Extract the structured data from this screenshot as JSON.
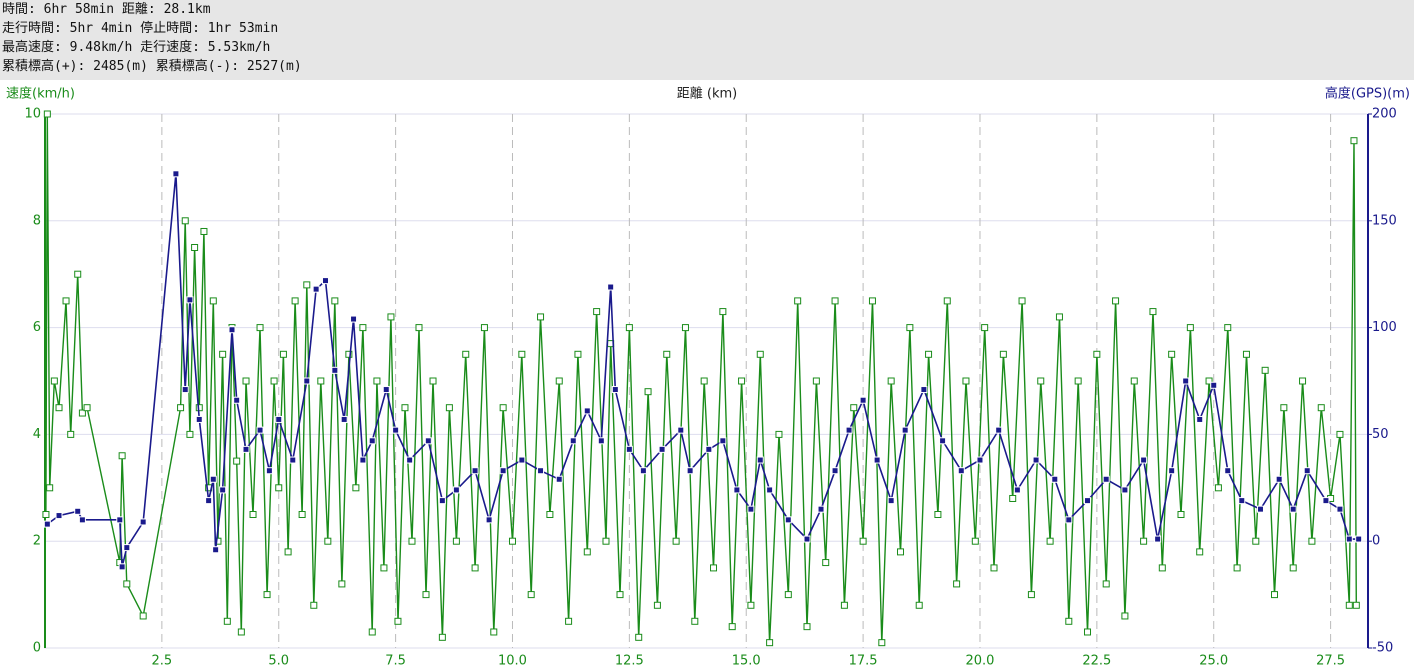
{
  "header": {
    "lines": [
      "時間: 6hr 58min 距離: 28.1km",
      "走行時間: 5hr 4min 停止時間: 1hr 53min",
      "最高速度: 9.48km/h 走行速度: 5.53km/h",
      "累積標高(+): 2485(m) 累積標高(-): 2527(m)"
    ]
  },
  "chart_data": {
    "type": "line",
    "ylabel": "速度(km/h)",
    "xlabel": "距離 (km)",
    "y2label": "高度(GPS)(m)",
    "xlim": [
      0,
      28.3
    ],
    "xticks": [
      2.5,
      {
        "value": 5,
        "label": "5.0"
      },
      7.5,
      {
        "value": 10,
        "label": "10.0"
      },
      12.5,
      {
        "value": 15,
        "label": "15.0"
      },
      17.5,
      {
        "value": 20,
        "label": "20.0"
      },
      22.5,
      {
        "value": 25,
        "label": "25.0"
      },
      27.5
    ],
    "ylim": [
      0,
      10
    ],
    "yticks": [
      0,
      2,
      4,
      6,
      8,
      10
    ],
    "y2lim": [
      -50,
      200
    ],
    "y2ticks": [
      -50,
      0,
      50,
      100,
      150,
      200
    ],
    "grid": true,
    "series": [
      {
        "color": "#1a8c1a",
        "axis": "y",
        "x": [
          0.02,
          0.05,
          0.1,
          0.2,
          0.3,
          0.45,
          0.55,
          0.7,
          0.8,
          0.9,
          1.6,
          1.65,
          1.75,
          2.1,
          2.9,
          3.0,
          3.1,
          3.2,
          3.3,
          3.4,
          3.5,
          3.6,
          3.7,
          3.8,
          3.9,
          4.0,
          4.1,
          4.2,
          4.3,
          4.45,
          4.6,
          4.75,
          4.9,
          5.0,
          5.1,
          5.2,
          5.35,
          5.5,
          5.6,
          5.75,
          5.9,
          6.05,
          6.2,
          6.35,
          6.5,
          6.65,
          6.8,
          7.0,
          7.1,
          7.25,
          7.4,
          7.55,
          7.7,
          7.85,
          8.0,
          8.15,
          8.3,
          8.5,
          8.65,
          8.8,
          9.0,
          9.2,
          9.4,
          9.6,
          9.8,
          10.0,
          10.2,
          10.4,
          10.6,
          10.8,
          11.0,
          11.2,
          11.4,
          11.6,
          11.8,
          12.0,
          12.1,
          12.3,
          12.5,
          12.7,
          12.9,
          13.1,
          13.3,
          13.5,
          13.7,
          13.9,
          14.1,
          14.3,
          14.5,
          14.7,
          14.9,
          15.1,
          15.3,
          15.5,
          15.7,
          15.9,
          16.1,
          16.3,
          16.5,
          16.7,
          16.9,
          17.1,
          17.3,
          17.5,
          17.7,
          17.9,
          18.1,
          18.3,
          18.5,
          18.7,
          18.9,
          19.1,
          19.3,
          19.5,
          19.7,
          19.9,
          20.1,
          20.3,
          20.5,
          20.7,
          20.9,
          21.1,
          21.3,
          21.5,
          21.7,
          21.9,
          22.1,
          22.3,
          22.5,
          22.7,
          22.9,
          23.1,
          23.3,
          23.5,
          23.7,
          23.9,
          24.1,
          24.3,
          24.5,
          24.7,
          24.9,
          25.1,
          25.3,
          25.5,
          25.7,
          25.9,
          26.1,
          26.3,
          26.5,
          26.7,
          26.9,
          27.1,
          27.3,
          27.5,
          27.7,
          27.9,
          28.0,
          28.05
        ],
        "values": [
          2.5,
          10,
          3,
          5,
          4.5,
          6.5,
          4,
          7,
          4.4,
          4.5,
          1.6,
          3.6,
          1.2,
          0.6,
          4.5,
          8,
          4,
          7.5,
          4.5,
          7.8,
          3,
          6.5,
          2,
          5.5,
          0.5,
          6,
          3.5,
          0.3,
          5,
          2.5,
          6,
          1,
          5,
          3,
          5.5,
          1.8,
          6.5,
          2.5,
          6.8,
          0.8,
          5,
          2,
          6.5,
          1.2,
          5.5,
          3,
          6,
          0.3,
          5,
          1.5,
          6.2,
          0.5,
          4.5,
          2,
          6,
          1,
          5,
          0.2,
          4.5,
          2,
          5.5,
          1.5,
          6,
          0.3,
          4.5,
          2,
          5.5,
          1,
          6.2,
          2.5,
          5,
          0.5,
          5.5,
          1.8,
          6.3,
          2,
          5.7,
          1,
          6,
          0.2,
          4.8,
          0.8,
          5.5,
          2,
          6,
          0.5,
          5,
          1.5,
          6.3,
          0.4,
          5,
          0.8,
          5.5,
          0.1,
          4,
          1,
          6.5,
          0.4,
          5,
          1.6,
          6.5,
          0.8,
          4.5,
          2,
          6.5,
          0.1,
          5,
          1.8,
          6,
          0.8,
          5.5,
          2.5,
          6.5,
          1.2,
          5,
          2,
          6,
          1.5,
          5.5,
          2.8,
          6.5,
          1,
          5,
          2,
          6.2,
          0.5,
          5,
          0.3,
          5.5,
          1.2,
          6.5,
          0.6,
          5,
          2,
          6.3,
          1.5,
          5.5,
          2.5,
          6,
          1.8,
          5,
          3,
          6,
          1.5,
          5.5,
          2,
          5.2,
          1,
          4.5,
          1.5,
          5,
          2,
          4.5,
          2.8,
          4,
          0.8,
          9.5,
          0.8
        ]
      },
      {
        "color": "#1a1a8c",
        "axis": "y2",
        "x": [
          0.05,
          0.3,
          0.7,
          0.8,
          1.6,
          1.65,
          1.75,
          2.1,
          2.8,
          3.0,
          3.1,
          3.3,
          3.5,
          3.6,
          3.65,
          3.8,
          4.0,
          4.1,
          4.3,
          4.6,
          4.8,
          5.0,
          5.3,
          5.6,
          5.8,
          6.0,
          6.2,
          6.4,
          6.6,
          6.8,
          7.0,
          7.3,
          7.5,
          7.8,
          8.2,
          8.5,
          8.8,
          9.2,
          9.5,
          9.8,
          10.2,
          10.6,
          11.0,
          11.3,
          11.6,
          11.9,
          12.1,
          12.2,
          12.5,
          12.8,
          13.2,
          13.6,
          13.8,
          14.2,
          14.5,
          14.8,
          15.1,
          15.3,
          15.5,
          15.9,
          16.3,
          16.6,
          16.9,
          17.2,
          17.5,
          17.8,
          18.1,
          18.4,
          18.8,
          19.2,
          19.6,
          20.0,
          20.4,
          20.8,
          21.2,
          21.6,
          21.9,
          22.3,
          22.7,
          23.1,
          23.5,
          23.8,
          24.1,
          24.4,
          24.7,
          25.0,
          25.3,
          25.6,
          26.0,
          26.4,
          26.7,
          27.0,
          27.4,
          27.7,
          27.9,
          28.1
        ],
        "values": [
          8,
          12,
          14,
          10,
          10,
          -12,
          -3,
          9,
          172,
          71,
          113,
          57,
          19,
          29,
          -4,
          24,
          99,
          66,
          43,
          52,
          33,
          57,
          38,
          75,
          118,
          122,
          80,
          57,
          104,
          38,
          47,
          71,
          52,
          38,
          47,
          19,
          24,
          33,
          10,
          33,
          38,
          33,
          29,
          47,
          61,
          47,
          119,
          71,
          43,
          33,
          43,
          52,
          33,
          43,
          47,
          24,
          15,
          38,
          24,
          10,
          1,
          15,
          33,
          52,
          66,
          38,
          19,
          52,
          71,
          47,
          33,
          38,
          52,
          24,
          38,
          29,
          10,
          19,
          29,
          24,
          38,
          1,
          33,
          75,
          57,
          73,
          33,
          19,
          15,
          29,
          15,
          33,
          19,
          15,
          1,
          1
        ]
      }
    ]
  }
}
